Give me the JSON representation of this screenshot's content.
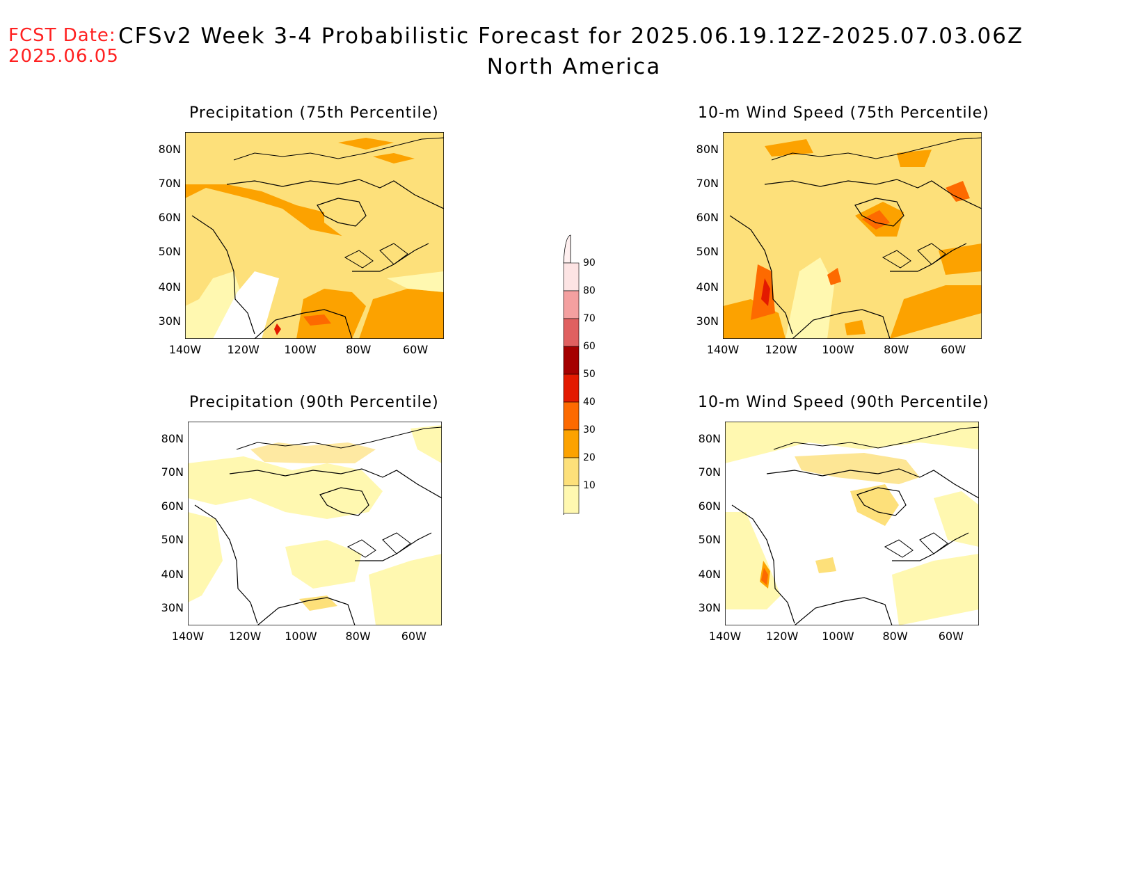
{
  "fcst_date": {
    "label": "FCST Date:",
    "date": "2025.06.05"
  },
  "title": "CFSv2 Week 3-4 Probabilistic Forecast for 2025.06.19.12Z-2025.07.03.06Z",
  "subtitle": "North America",
  "panels": [
    {
      "title": "Precipitation (75th Percentile)"
    },
    {
      "title": "10-m Wind Speed (75th Percentile)"
    },
    {
      "title": "Precipitation (90th Percentile)"
    },
    {
      "title": "10-m Wind Speed (90th Percentile)"
    }
  ],
  "axis": {
    "lat_labels": [
      "80N",
      "70N",
      "60N",
      "50N",
      "40N",
      "30N"
    ],
    "lon_labels": [
      "140W",
      "120W",
      "100W",
      "80W",
      "60W"
    ]
  },
  "colorbar": {
    "levels": [
      "90",
      "80",
      "70",
      "60",
      "50",
      "40",
      "30",
      "20",
      "10"
    ],
    "colors": {
      "c10": "#fff8b0",
      "c20": "#fde07a",
      "c30": "#fca200",
      "c40": "#fd6a00",
      "c50": "#e31a00",
      "c60": "#a50000",
      "c70": "#e06060",
      "c80": "#f4a0a0",
      "c90": "#fde4e4"
    }
  }
}
